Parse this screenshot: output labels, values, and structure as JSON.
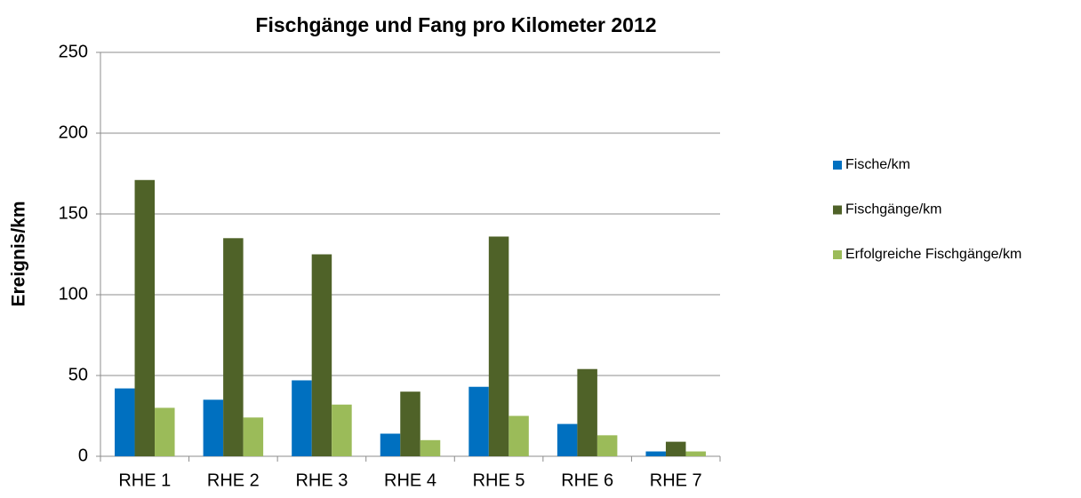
{
  "chart_data": {
    "type": "bar",
    "title": "Fischgänge und Fang pro Kilometer 2012",
    "y_label": "Ereignis/km",
    "categories": [
      "RHE 1",
      "RHE 2",
      "RHE 3",
      "RHE 4",
      "RHE 5",
      "RHE 6",
      "RHE 7"
    ],
    "series": [
      {
        "name": "Fische/km",
        "color": "#0070c0",
        "values": [
          42,
          35,
          47,
          14,
          43,
          20,
          3
        ]
      },
      {
        "name": "Fischgänge/km",
        "color": "#4f6228",
        "values": [
          171,
          135,
          125,
          40,
          136,
          54,
          9
        ]
      },
      {
        "name": "Erfolgreiche Fischgänge/km",
        "color": "#9bbb59",
        "values": [
          30,
          24,
          32,
          10,
          25,
          13,
          3
        ]
      }
    ],
    "ylim": [
      0,
      250
    ],
    "yticks": [
      0,
      50,
      100,
      150,
      200,
      250
    ],
    "grid": true,
    "legend": "right"
  }
}
